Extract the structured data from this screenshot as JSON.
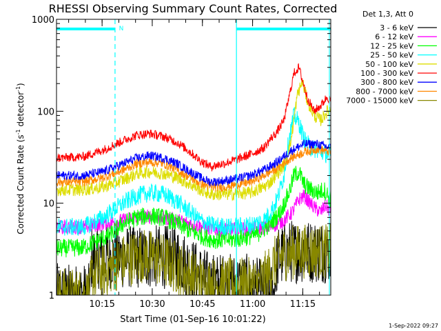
{
  "chart_data": {
    "type": "line",
    "title": "RHESSI Observing Summary Count Rates, Corrected",
    "xlabel": "Start Time (01-Sep-16 10:01:22)",
    "ylabel": "Corrected Count Rate (s",
    "ylabel_sup": "-1",
    "ylabel_tail": " detector",
    "ylabel_close": ")",
    "yscale": "log",
    "ylim": [
      1,
      1000
    ],
    "xlim_minutes": [
      0,
      82
    ],
    "x_ticks": [
      {
        "m": 13.63,
        "label": "10:15"
      },
      {
        "m": 28.63,
        "label": "10:30"
      },
      {
        "m": 43.63,
        "label": "10:45"
      },
      {
        "m": 58.63,
        "label": "11:00"
      },
      {
        "m": 73.63,
        "label": "11:15"
      }
    ],
    "y_ticks": [
      {
        "v": 1,
        "label": "1"
      },
      {
        "v": 10,
        "label": "10"
      },
      {
        "v": 100,
        "label": "100"
      },
      {
        "v": 1000,
        "label": "1000"
      }
    ],
    "legend_title": "Det 1,3, Att 0",
    "night_marker": "N",
    "night_start_m": 17.5,
    "saa_end_m": 53.8,
    "timestamp": "1-Sep-2022 09:27",
    "series": [
      {
        "name": "3 - 6 keV",
        "color": "#000000",
        "noise": 0.35,
        "x": [
          0,
          10,
          10.5,
          36,
          44,
          46,
          56,
          65,
          66,
          70,
          82
        ],
        "values": [
          1,
          1,
          2.6,
          2.6,
          1.5,
          1.3,
          1.3,
          1,
          2.5,
          3.0,
          3.0
        ]
      },
      {
        "name": "6 - 12 keV",
        "color": "#ff00ff",
        "noise": 0.08,
        "x": [
          0,
          8,
          20,
          24,
          28,
          34,
          40,
          44,
          47,
          55,
          64,
          68,
          70.5,
          72.5,
          74,
          77,
          79,
          80.5,
          82
        ],
        "values": [
          5.5,
          5.5,
          6.5,
          7.0,
          7.2,
          6.8,
          6.0,
          5.5,
          5.2,
          5.2,
          5.5,
          6.5,
          8.0,
          11.0,
          12.0,
          9.0,
          8.0,
          9.5,
          8.0
        ]
      },
      {
        "name": "12 - 25 keV",
        "color": "#00ff00",
        "noise": 0.1,
        "x": [
          0,
          8,
          16,
          20,
          24,
          28,
          32,
          36,
          40,
          44,
          47,
          52,
          56,
          60,
          64,
          67,
          69.5,
          71,
          72.5,
          74,
          76,
          78,
          80,
          82
        ],
        "values": [
          3.2,
          3.3,
          4.5,
          6.0,
          7.0,
          7.3,
          7.0,
          6.0,
          5.0,
          4.3,
          4.0,
          4.0,
          4.2,
          4.6,
          6.0,
          8.0,
          13.0,
          20.0,
          22.0,
          16.0,
          14.0,
          13.0,
          14.0,
          11.0
        ]
      },
      {
        "name": "25 - 50 keV",
        "color": "#00ffff",
        "noise": 0.1,
        "x": [
          0,
          8,
          14,
          20,
          24,
          28,
          32,
          36,
          40,
          43,
          46,
          52,
          58,
          62,
          64,
          66,
          68,
          69.5,
          71,
          72.5,
          74,
          76,
          78,
          80,
          82
        ],
        "values": [
          5.5,
          5.5,
          7.0,
          10.0,
          12.0,
          13.0,
          12.5,
          10.5,
          8.0,
          6.5,
          5.8,
          5.5,
          5.8,
          6.5,
          8.0,
          11.0,
          20.0,
          50.0,
          90.0,
          75.0,
          50.0,
          40.0,
          38.0,
          35.0,
          33.0
        ]
      },
      {
        "name": "50 - 100 keV",
        "color": "#dddd00",
        "noise": 0.07,
        "x": [
          0,
          8,
          14,
          20,
          24,
          28,
          32,
          36,
          40,
          43,
          46,
          52,
          58,
          62,
          64,
          66,
          68,
          70,
          72,
          73.5,
          75,
          77,
          79,
          81,
          82
        ],
        "values": [
          14,
          14,
          15,
          18,
          21,
          22,
          21,
          19,
          16,
          14,
          12.5,
          12.5,
          13,
          15,
          17,
          21,
          26,
          45,
          150,
          210,
          130,
          90,
          80,
          100,
          105
        ]
      },
      {
        "name": "100 - 300 keV",
        "color": "#ff0000",
        "noise": 0.05,
        "x": [
          0,
          8,
          14,
          20,
          24,
          28,
          32,
          36,
          40,
          43,
          46,
          50,
          54,
          58,
          62,
          64,
          66,
          68,
          69.5,
          71,
          72.5,
          73.5,
          75,
          77,
          79,
          81,
          82
        ],
        "values": [
          31,
          32,
          38,
          48,
          55,
          57,
          53,
          46,
          36,
          29,
          25,
          27,
          30,
          34,
          40,
          50,
          60,
          80,
          140,
          260,
          300,
          220,
          140,
          100,
          115,
          145,
          125
        ]
      },
      {
        "name": "300 - 800 keV",
        "color": "#0000ff",
        "noise": 0.05,
        "x": [
          0,
          8,
          14,
          20,
          24,
          28,
          32,
          36,
          40,
          43,
          46,
          50,
          54,
          58,
          62,
          66,
          70,
          74,
          78,
          82
        ],
        "values": [
          20,
          20,
          22,
          27,
          31,
          33,
          31,
          27,
          22,
          19,
          17,
          17.5,
          18.5,
          20,
          23,
          28,
          37,
          44,
          44,
          40
        ]
      },
      {
        "name": "800 - 7000 keV",
        "color": "#ff8800",
        "noise": 0.05,
        "x": [
          0,
          8,
          14,
          20,
          24,
          28,
          32,
          36,
          40,
          43,
          46,
          50,
          54,
          58,
          62,
          66,
          70,
          74,
          78,
          82
        ],
        "values": [
          17,
          17,
          19,
          23,
          27,
          28,
          27,
          23,
          19,
          16.5,
          15,
          15,
          16,
          17,
          20,
          24,
          31,
          36,
          39,
          36
        ]
      },
      {
        "name": "7000 - 15000 keV",
        "color": "#888800",
        "noise": 0.3,
        "x": [
          0,
          10,
          10.5,
          14,
          18,
          22,
          26,
          30,
          34,
          36,
          40,
          42,
          44,
          50,
          60,
          63,
          65,
          68,
          72,
          76,
          82
        ],
        "values": [
          1,
          1,
          1.6,
          1.8,
          2.2,
          2.5,
          2.7,
          2.5,
          2.2,
          2.0,
          1.6,
          1.5,
          1.3,
          1.3,
          1.3,
          1.6,
          2.2,
          2.8,
          3.0,
          3.0,
          3.0
        ]
      }
    ]
  }
}
